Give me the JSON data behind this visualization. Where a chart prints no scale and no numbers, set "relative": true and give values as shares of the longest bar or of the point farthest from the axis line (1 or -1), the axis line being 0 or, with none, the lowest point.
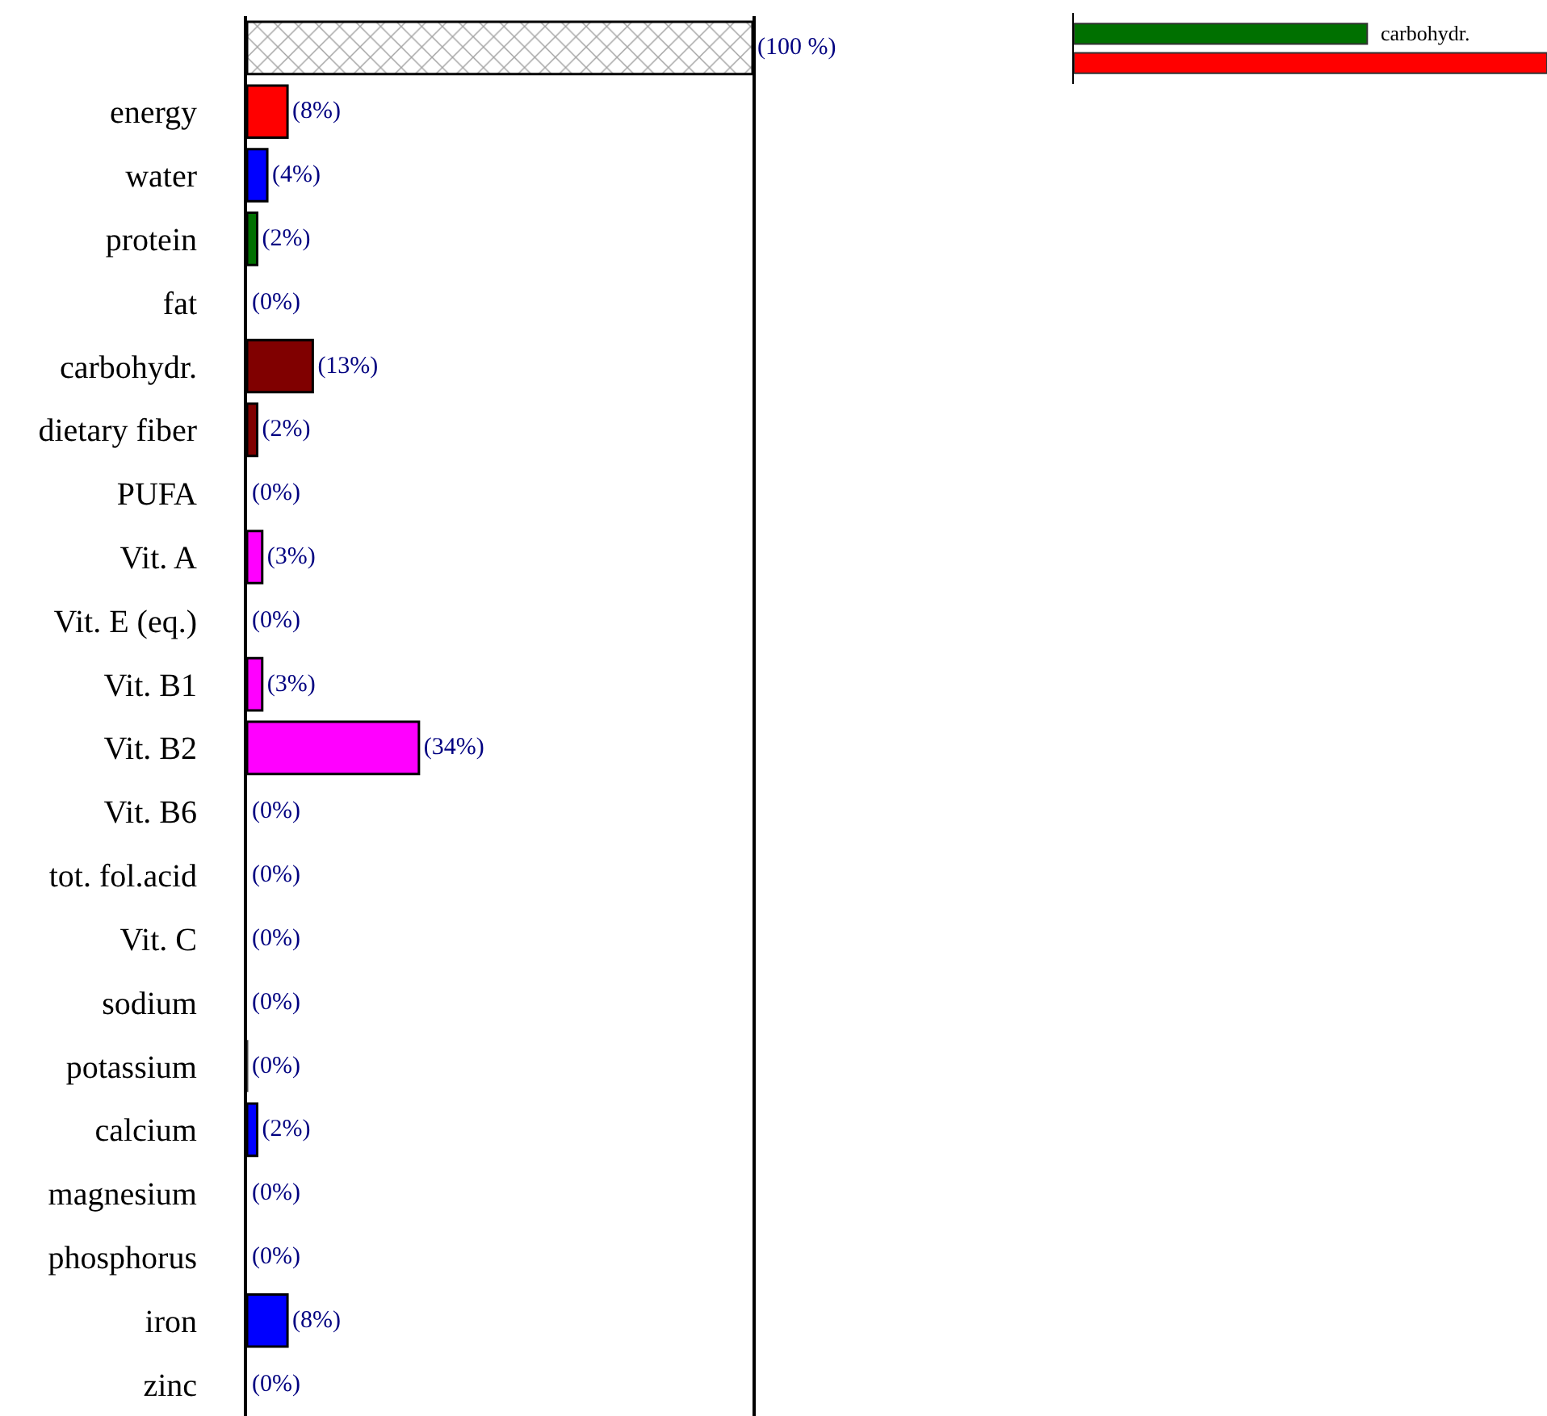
{
  "chart_data": [
    {
      "type": "bar",
      "orientation": "horizontal",
      "xlim": [
        0,
        100
      ],
      "tick_labels": "y",
      "categories": [
        null,
        "energy",
        "water",
        "protein",
        "fat",
        "carbohydr.",
        "dietary fiber",
        "PUFA",
        "Vit. A",
        "Vit. E (eq.)",
        "Vit. B1",
        "Vit. B2",
        "Vit. B6",
        "tot. fol.acid",
        "Vit. C",
        "sodium",
        "potassium",
        "calcium",
        "magnesium",
        "phosphorus",
        "iron",
        "zinc"
      ],
      "values": [
        100,
        8,
        4,
        2,
        0,
        13,
        2,
        0,
        3,
        0,
        3,
        34,
        0,
        0,
        0,
        0,
        0,
        2,
        0,
        0,
        8,
        0
      ],
      "colors": [
        "#000000",
        "#ff0000",
        "#0000ff",
        "#007000",
        "#ffffff",
        "#800000",
        "#800000",
        "#ffffff",
        "#ff00ff",
        "#ffffff",
        "#ff00ff",
        "#ff00ff",
        "#ffffff",
        "#ffffff",
        "#ffffff",
        "#ffffff",
        "#404040",
        "#0000ff",
        "#ffffff",
        "#ffffff",
        "#0000ff",
        "#ffffff"
      ],
      "value_labels": [
        "(100 %)",
        "(8%)",
        "(4%)",
        "(2%)",
        "(0%)",
        "(13%)",
        "(2%)",
        "(0%)",
        "(3%)",
        "(0%)",
        "(3%)",
        "(34%)",
        "(0%)",
        "(0%)",
        "(0%)",
        "(0%)",
        "(0%)",
        "(2%)",
        "(0%)",
        "(0%)",
        "(8%)",
        "(0%)"
      ]
    },
    {
      "type": "bar",
      "orientation": "horizontal",
      "relative": true,
      "tick_labels": false,
      "categories": [
        null
      ],
      "series": [
        {
          "name": "carbohydr.",
          "color": "#007000",
          "values": [
            0.62
          ]
        },
        {
          "color": "#ff0000",
          "values": [
            1
          ]
        }
      ]
    }
  ]
}
